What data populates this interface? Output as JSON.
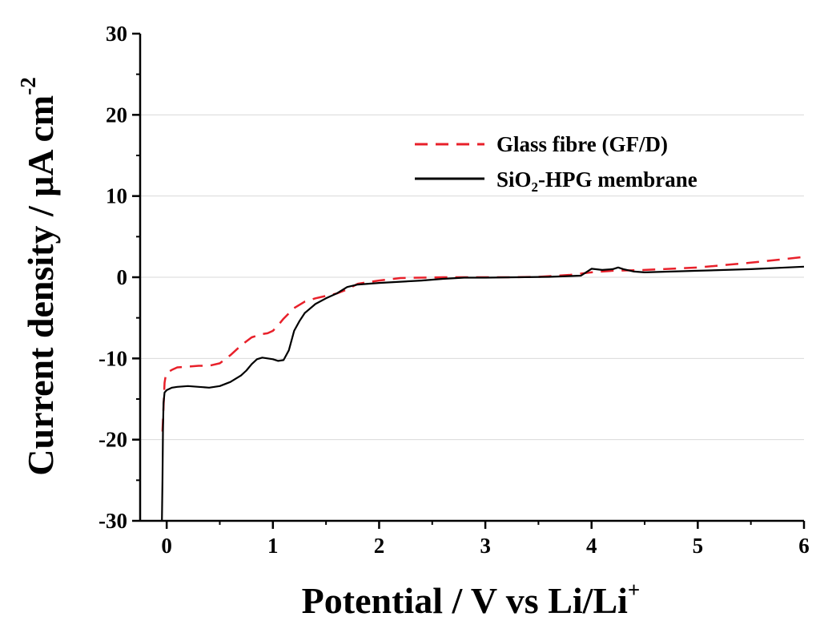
{
  "chart_data": {
    "type": "line",
    "title": "",
    "xlabel": "Potential / V vs Li/Li",
    "xlabel_sup": "+",
    "ylabel": "Current density / μA cm",
    "ylabel_sup": "-2",
    "xlim": [
      -0.25,
      6
    ],
    "ylim": [
      -30,
      30
    ],
    "xticks": [
      0,
      1,
      2,
      3,
      4,
      5,
      6
    ],
    "yticks": [
      -30,
      -20,
      -10,
      0,
      10,
      20,
      30
    ],
    "x_tick_labels": [
      "0",
      "1",
      "2",
      "3",
      "4",
      "5",
      "6"
    ],
    "y_tick_labels": [
      "-30",
      "-20",
      "-10",
      "0",
      "10",
      "20",
      "30"
    ],
    "grid": "horizontal",
    "legend_position": "top-right",
    "series": [
      {
        "name": "Glass fibre (GF/D)",
        "color": "#e8202a",
        "style": "dashed",
        "x": [
          -0.04,
          -0.03,
          -0.02,
          -0.01,
          0.0,
          0.05,
          0.1,
          0.2,
          0.3,
          0.4,
          0.5,
          0.55,
          0.6,
          0.7,
          0.8,
          0.9,
          0.95,
          1.0,
          1.05,
          1.1,
          1.2,
          1.3,
          1.4,
          1.5,
          1.6,
          1.7,
          1.8,
          2.0,
          2.2,
          2.4,
          2.6,
          2.8,
          3.0,
          3.2,
          3.5,
          3.8,
          4.0,
          4.2,
          4.5,
          5.0,
          5.5,
          6.0
        ],
        "y": [
          -19,
          -16,
          -13,
          -12.2,
          -11.8,
          -11.4,
          -11.1,
          -11.0,
          -10.9,
          -10.9,
          -10.6,
          -10.1,
          -9.6,
          -8.4,
          -7.4,
          -7.0,
          -6.9,
          -6.6,
          -5.9,
          -5.1,
          -3.8,
          -3.0,
          -2.6,
          -2.3,
          -2.0,
          -1.5,
          -0.8,
          -0.4,
          -0.1,
          -0.05,
          0.0,
          0.0,
          0.0,
          0.0,
          0.05,
          0.3,
          0.6,
          0.8,
          0.9,
          1.2,
          1.8,
          2.5
        ]
      },
      {
        "name": "SiO₂-HPG membrane",
        "name_base": "SiO",
        "name_sub": "2",
        "name_rest": "-HPG membrane",
        "color": "#000000",
        "style": "solid",
        "x": [
          -0.045,
          -0.04,
          -0.035,
          -0.03,
          -0.02,
          0.0,
          0.05,
          0.1,
          0.2,
          0.3,
          0.4,
          0.5,
          0.6,
          0.7,
          0.75,
          0.8,
          0.85,
          0.9,
          0.95,
          1.0,
          1.05,
          1.1,
          1.15,
          1.2,
          1.25,
          1.3,
          1.4,
          1.5,
          1.6,
          1.7,
          1.8,
          2.0,
          2.2,
          2.4,
          2.6,
          2.8,
          3.0,
          3.3,
          3.6,
          3.9,
          4.0,
          4.1,
          4.2,
          4.25,
          4.3,
          4.4,
          4.5,
          5.0,
          5.5,
          6.0
        ],
        "y": [
          -30,
          -25,
          -19,
          -15.5,
          -14.2,
          -13.9,
          -13.6,
          -13.5,
          -13.4,
          -13.5,
          -13.6,
          -13.4,
          -12.9,
          -12.1,
          -11.5,
          -10.7,
          -10.1,
          -9.9,
          -10.0,
          -10.1,
          -10.3,
          -10.2,
          -9.0,
          -6.6,
          -5.4,
          -4.4,
          -3.3,
          -2.6,
          -2.0,
          -1.2,
          -0.9,
          -0.7,
          -0.55,
          -0.4,
          -0.2,
          -0.05,
          -0.05,
          0.0,
          0.05,
          0.2,
          1.05,
          0.9,
          1.0,
          1.2,
          1.0,
          0.7,
          0.6,
          0.8,
          1.0,
          1.3
        ]
      }
    ]
  }
}
